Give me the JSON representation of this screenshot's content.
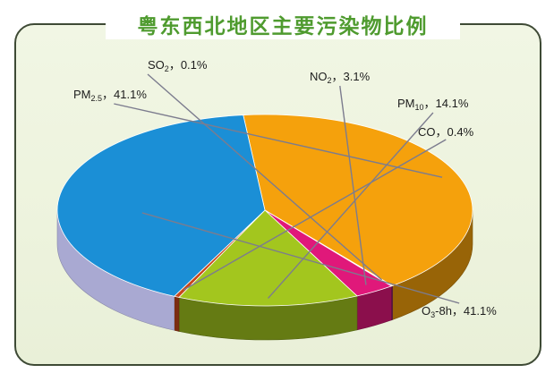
{
  "chart_data": {
    "type": "pie",
    "title": "粤东西北地区主要污染物比例",
    "categories": [
      "PM2.5",
      "SO2",
      "NO2",
      "PM10",
      "CO",
      "O3-8h"
    ],
    "values": [
      41.1,
      0.1,
      3.1,
      14.1,
      0.4,
      41.1
    ],
    "value_suffix": "%",
    "colors": [
      "#f5a10c",
      "#8c1f86",
      "#e0187a",
      "#a3c61e",
      "#c8471b",
      "#1b8fd6"
    ],
    "labels": [
      {
        "main": "PM",
        "sub": "2.5",
        "text": "，41.1%"
      },
      {
        "main": "SO",
        "sub": "2",
        "text": "，0.1%"
      },
      {
        "main": "NO",
        "sub": "2",
        "text": "，3.1%"
      },
      {
        "main": "PM",
        "sub": "10",
        "text": "，14.1%"
      },
      {
        "main": "CO",
        "sub": "",
        "text": "，0.4%"
      },
      {
        "main": "O",
        "sub": "3",
        "text": "-8h，41.1%"
      }
    ]
  }
}
